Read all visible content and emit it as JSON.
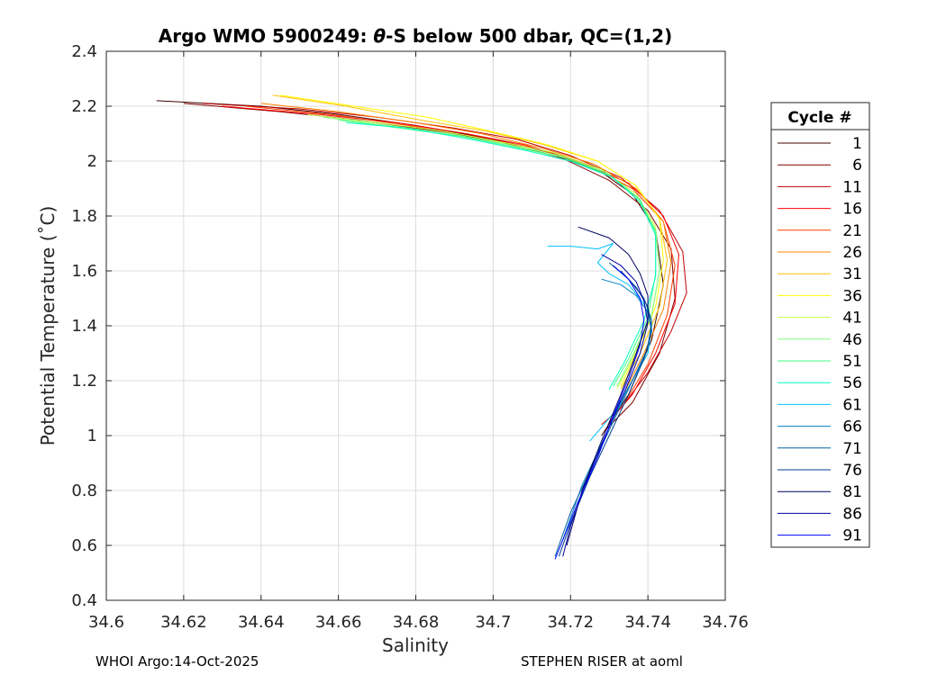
{
  "footer": {
    "left": "WHOI Argo:14-Oct-2025",
    "right": "STEPHEN RISER at aoml"
  },
  "chart_data": {
    "type": "line",
    "title": "Argo WMO 5900249: θ-S below 500 dbar,  QC=(1,2)",
    "title_parts": [
      "Argo WMO 5900249: ",
      "θ",
      "-S below 500 dbar,  QC=(1,2)"
    ],
    "xlabel": "Salinity",
    "ylabel": "Potential Temperature (˚C)",
    "xlim": [
      34.6,
      34.76
    ],
    "ylim": [
      0.4,
      2.4
    ],
    "xticks": [
      34.6,
      34.62,
      34.64,
      34.66,
      34.68,
      34.7,
      34.72,
      34.74,
      34.76
    ],
    "yticks": [
      0.4,
      0.6,
      0.8,
      1,
      1.2,
      1.4,
      1.6,
      1.8,
      2,
      2.2,
      2.4
    ],
    "xtick_labels": [
      "34.6",
      "34.62",
      "34.64",
      "34.66",
      "34.68",
      "34.7",
      "34.72",
      "34.74",
      "34.76"
    ],
    "ytick_labels": [
      "0.4",
      "0.6",
      "0.8",
      "1",
      "1.2",
      "1.4",
      "1.6",
      "1.8",
      "2",
      "2.2",
      "2.4"
    ],
    "grid": true,
    "legend": {
      "title": "Cycle #",
      "placement": "outside-right",
      "entries": [
        "1",
        "6",
        "11",
        "16",
        "21",
        "26",
        "31",
        "36",
        "41",
        "46",
        "51",
        "56",
        "61",
        "66",
        "71",
        "76",
        "81",
        "86",
        "91"
      ],
      "colors": [
        "#400000",
        "#800000",
        "#c00000",
        "#ff0000",
        "#ff4000",
        "#ff8000",
        "#ffc000",
        "#ffff00",
        "#c0ff40",
        "#80ff80",
        "#40ff80",
        "#00ffc0",
        "#00c0ff",
        "#0080c0",
        "#0060a0",
        "#004090",
        "#000060",
        "#0000a0",
        "#0000ff"
      ]
    },
    "series": [
      {
        "name": "1",
        "color": "#400000",
        "x": [
          34.613,
          34.64,
          34.66,
          34.68,
          34.7,
          34.715,
          34.728,
          34.736,
          34.742,
          34.744,
          34.741,
          34.735,
          34.728
        ],
        "y": [
          2.22,
          2.2,
          2.17,
          2.13,
          2.08,
          2.03,
          1.96,
          1.88,
          1.75,
          1.55,
          1.35,
          1.15,
          1.0
        ]
      },
      {
        "name": "6",
        "color": "#800000",
        "x": [
          34.62,
          34.645,
          34.665,
          34.685,
          34.702,
          34.718,
          34.73,
          34.74,
          34.746,
          34.747,
          34.743,
          34.736,
          34.729
        ],
        "y": [
          2.21,
          2.18,
          2.15,
          2.11,
          2.07,
          2.01,
          1.93,
          1.82,
          1.68,
          1.5,
          1.3,
          1.12,
          1.02
        ]
      },
      {
        "name": "11",
        "color": "#c00000",
        "x": [
          34.625,
          34.65,
          34.67,
          34.69,
          34.706,
          34.72,
          34.733,
          34.743,
          34.749,
          34.75,
          34.746,
          34.74,
          34.733,
          34.728
        ],
        "y": [
          2.21,
          2.19,
          2.16,
          2.12,
          2.08,
          2.02,
          1.94,
          1.82,
          1.67,
          1.52,
          1.38,
          1.23,
          1.1,
          1.04
        ]
      },
      {
        "name": "16",
        "color": "#ff0000",
        "x": [
          34.63,
          34.655,
          34.675,
          34.693,
          34.708,
          34.722,
          34.735,
          34.744,
          34.748,
          34.747,
          34.742,
          34.736,
          34.73
        ],
        "y": [
          2.2,
          2.17,
          2.14,
          2.1,
          2.06,
          2.0,
          1.92,
          1.8,
          1.66,
          1.48,
          1.3,
          1.15,
          1.05
        ]
      },
      {
        "name": "21",
        "color": "#ff4000",
        "x": [
          34.636,
          34.658,
          34.678,
          34.695,
          34.71,
          34.724,
          34.736,
          34.744,
          34.747,
          34.745,
          34.74,
          34.734
        ],
        "y": [
          2.2,
          2.17,
          2.13,
          2.09,
          2.05,
          1.99,
          1.9,
          1.78,
          1.62,
          1.44,
          1.26,
          1.12
        ]
      },
      {
        "name": "26",
        "color": "#ff8000",
        "x": [
          34.64,
          34.66,
          34.68,
          34.697,
          34.712,
          34.726,
          34.737,
          34.744,
          34.746,
          34.744,
          34.739,
          34.734
        ],
        "y": [
          2.21,
          2.18,
          2.14,
          2.1,
          2.05,
          1.99,
          1.9,
          1.78,
          1.63,
          1.46,
          1.3,
          1.16
        ]
      },
      {
        "name": "31",
        "color": "#ffc000",
        "x": [
          34.643,
          34.662,
          34.681,
          34.698,
          34.713,
          34.727,
          34.737,
          34.743,
          34.745,
          34.743,
          34.738,
          34.733
        ],
        "y": [
          2.24,
          2.2,
          2.15,
          2.11,
          2.06,
          2.0,
          1.91,
          1.79,
          1.64,
          1.47,
          1.3,
          1.17
        ]
      },
      {
        "name": "36",
        "color": "#ffff00",
        "x": [
          34.645,
          34.664,
          34.683,
          34.699,
          34.714,
          34.727,
          34.737,
          34.743,
          34.744,
          34.742,
          34.737,
          34.733
        ],
        "y": [
          2.24,
          2.2,
          2.16,
          2.11,
          2.06,
          2.0,
          1.91,
          1.79,
          1.64,
          1.47,
          1.3,
          1.18
        ]
      },
      {
        "name": "41",
        "color": "#c0ff40",
        "x": [
          34.652,
          34.67,
          34.687,
          34.702,
          34.716,
          34.728,
          34.737,
          34.742,
          34.743,
          34.741,
          34.736,
          34.732
        ],
        "y": [
          2.17,
          2.14,
          2.11,
          2.07,
          2.03,
          1.97,
          1.88,
          1.76,
          1.6,
          1.44,
          1.28,
          1.17
        ]
      },
      {
        "name": "46",
        "color": "#80ff80",
        "x": [
          34.656,
          34.673,
          34.689,
          34.704,
          34.717,
          34.729,
          34.737,
          34.742,
          34.743,
          34.741,
          34.736,
          34.732
        ],
        "y": [
          2.16,
          2.13,
          2.1,
          2.06,
          2.02,
          1.96,
          1.87,
          1.75,
          1.6,
          1.44,
          1.29,
          1.18
        ]
      },
      {
        "name": "51",
        "color": "#40ff80",
        "x": [
          34.66,
          34.676,
          34.692,
          34.706,
          34.719,
          34.73,
          34.738,
          34.742,
          34.742,
          34.74,
          34.735,
          34.731
        ],
        "y": [
          2.15,
          2.12,
          2.09,
          2.05,
          2.01,
          1.95,
          1.86,
          1.74,
          1.59,
          1.43,
          1.28,
          1.18
        ]
      },
      {
        "name": "56",
        "color": "#00ffc0",
        "x": [
          34.662,
          34.678,
          34.694,
          34.708,
          34.72,
          34.731,
          34.738,
          34.742,
          34.742,
          34.739,
          34.734,
          34.73
        ],
        "y": [
          2.14,
          2.12,
          2.08,
          2.04,
          2.0,
          1.94,
          1.85,
          1.73,
          1.58,
          1.42,
          1.27,
          1.17
        ]
      },
      {
        "name": "61",
        "color": "#00c0ff",
        "x": [
          34.714,
          34.72,
          34.727,
          34.731,
          34.727,
          34.73,
          34.735,
          34.739,
          34.741,
          34.74,
          34.736,
          34.731,
          34.725
        ],
        "y": [
          1.69,
          1.69,
          1.68,
          1.7,
          1.63,
          1.59,
          1.55,
          1.48,
          1.4,
          1.3,
          1.2,
          1.08,
          0.98
        ]
      },
      {
        "name": "66",
        "color": "#0080c0",
        "x": [
          34.728,
          34.733,
          34.737,
          34.74,
          34.741,
          34.739,
          34.734,
          34.729,
          34.723,
          34.718
        ],
        "y": [
          1.57,
          1.55,
          1.51,
          1.45,
          1.38,
          1.28,
          1.15,
          1.0,
          0.82,
          0.62
        ]
      },
      {
        "name": "71",
        "color": "#0060a0",
        "x": [
          34.73,
          34.735,
          34.739,
          34.741,
          34.74,
          34.736,
          34.731,
          34.726,
          34.72,
          34.716
        ],
        "y": [
          1.63,
          1.57,
          1.5,
          1.42,
          1.32,
          1.2,
          1.05,
          0.9,
          0.72,
          0.56
        ]
      },
      {
        "name": "76",
        "color": "#004090",
        "x": [
          34.733,
          34.737,
          34.74,
          34.741,
          34.739,
          34.735,
          34.73,
          34.725,
          34.72,
          34.717
        ],
        "y": [
          1.6,
          1.54,
          1.47,
          1.38,
          1.28,
          1.15,
          1.0,
          0.85,
          0.68,
          0.56
        ]
      },
      {
        "name": "81",
        "color": "#000060",
        "x": [
          34.722,
          34.73,
          34.735,
          34.738,
          34.74,
          34.74,
          34.737,
          34.733,
          34.728,
          34.723,
          34.719
        ],
        "y": [
          1.76,
          1.72,
          1.66,
          1.59,
          1.51,
          1.42,
          1.3,
          1.15,
          0.98,
          0.8,
          0.6
        ]
      },
      {
        "name": "86",
        "color": "#0000a0",
        "x": [
          34.728,
          34.733,
          34.737,
          34.739,
          34.74,
          34.738,
          34.734,
          34.729,
          34.724,
          34.72,
          34.718
        ],
        "y": [
          1.66,
          1.62,
          1.56,
          1.49,
          1.41,
          1.3,
          1.16,
          1.0,
          0.83,
          0.67,
          0.56
        ]
      },
      {
        "name": "91",
        "color": "#0000ff",
        "x": [
          34.731,
          34.735,
          34.738,
          34.739,
          34.738,
          34.735,
          34.731,
          34.727,
          34.722,
          34.718,
          34.716
        ],
        "y": [
          1.62,
          1.57,
          1.5,
          1.42,
          1.33,
          1.21,
          1.07,
          0.92,
          0.76,
          0.62,
          0.55
        ]
      }
    ]
  }
}
